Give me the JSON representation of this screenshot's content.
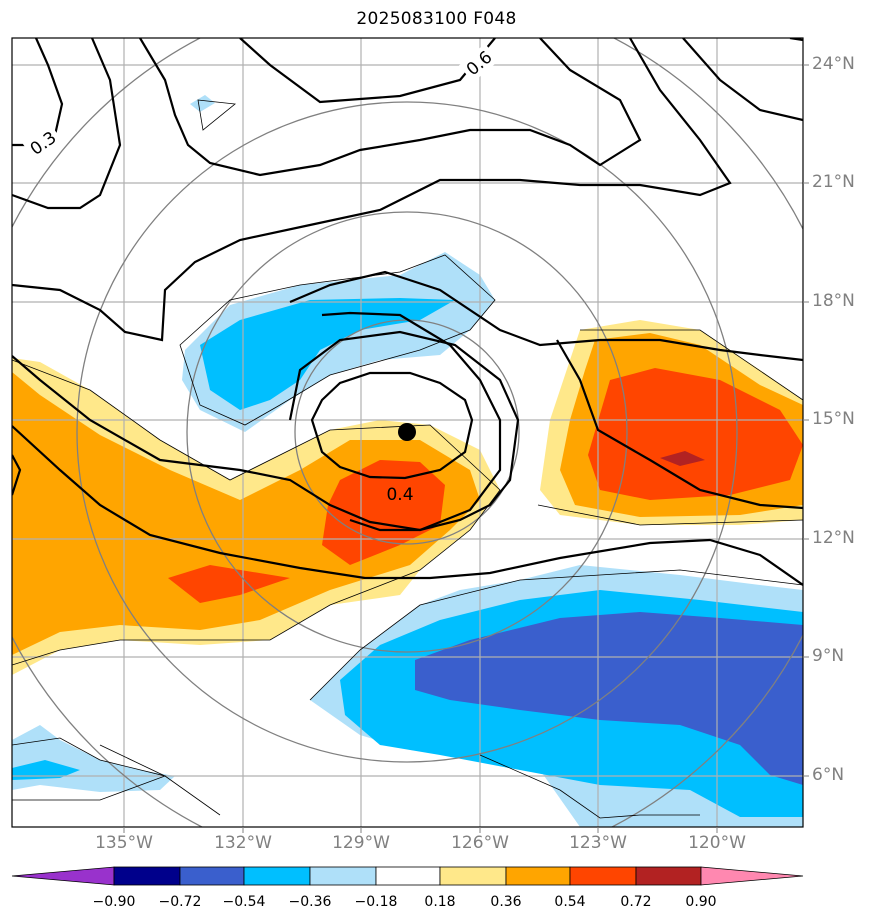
{
  "title": "2025083100 F048",
  "map": {
    "lat_labels": [
      "24°N",
      "21°N",
      "18°N",
      "15°N",
      "12°N",
      "9°N",
      "6°N"
    ],
    "lon_labels": [
      "135°W",
      "132°W",
      "129°W",
      "126°W",
      "123°W",
      "120°W"
    ],
    "contour_labels": [
      "0.3",
      "0.6",
      "0.4"
    ],
    "storm_center_marker": "black-dot"
  },
  "colorbar": {
    "ticks": [
      "−0.90",
      "−0.72",
      "−0.54",
      "−0.36",
      "−0.18",
      "0.18",
      "0.36",
      "0.54",
      "0.72",
      "0.90"
    ],
    "colors": [
      "#9932cc",
      "#00008b",
      "#3a5fcd",
      "#00bfff",
      "#afe0f9",
      "#ffffff",
      "#ffe88a",
      "#ffa500",
      "#ff4500",
      "#b22222",
      "#ff88b0"
    ]
  }
}
